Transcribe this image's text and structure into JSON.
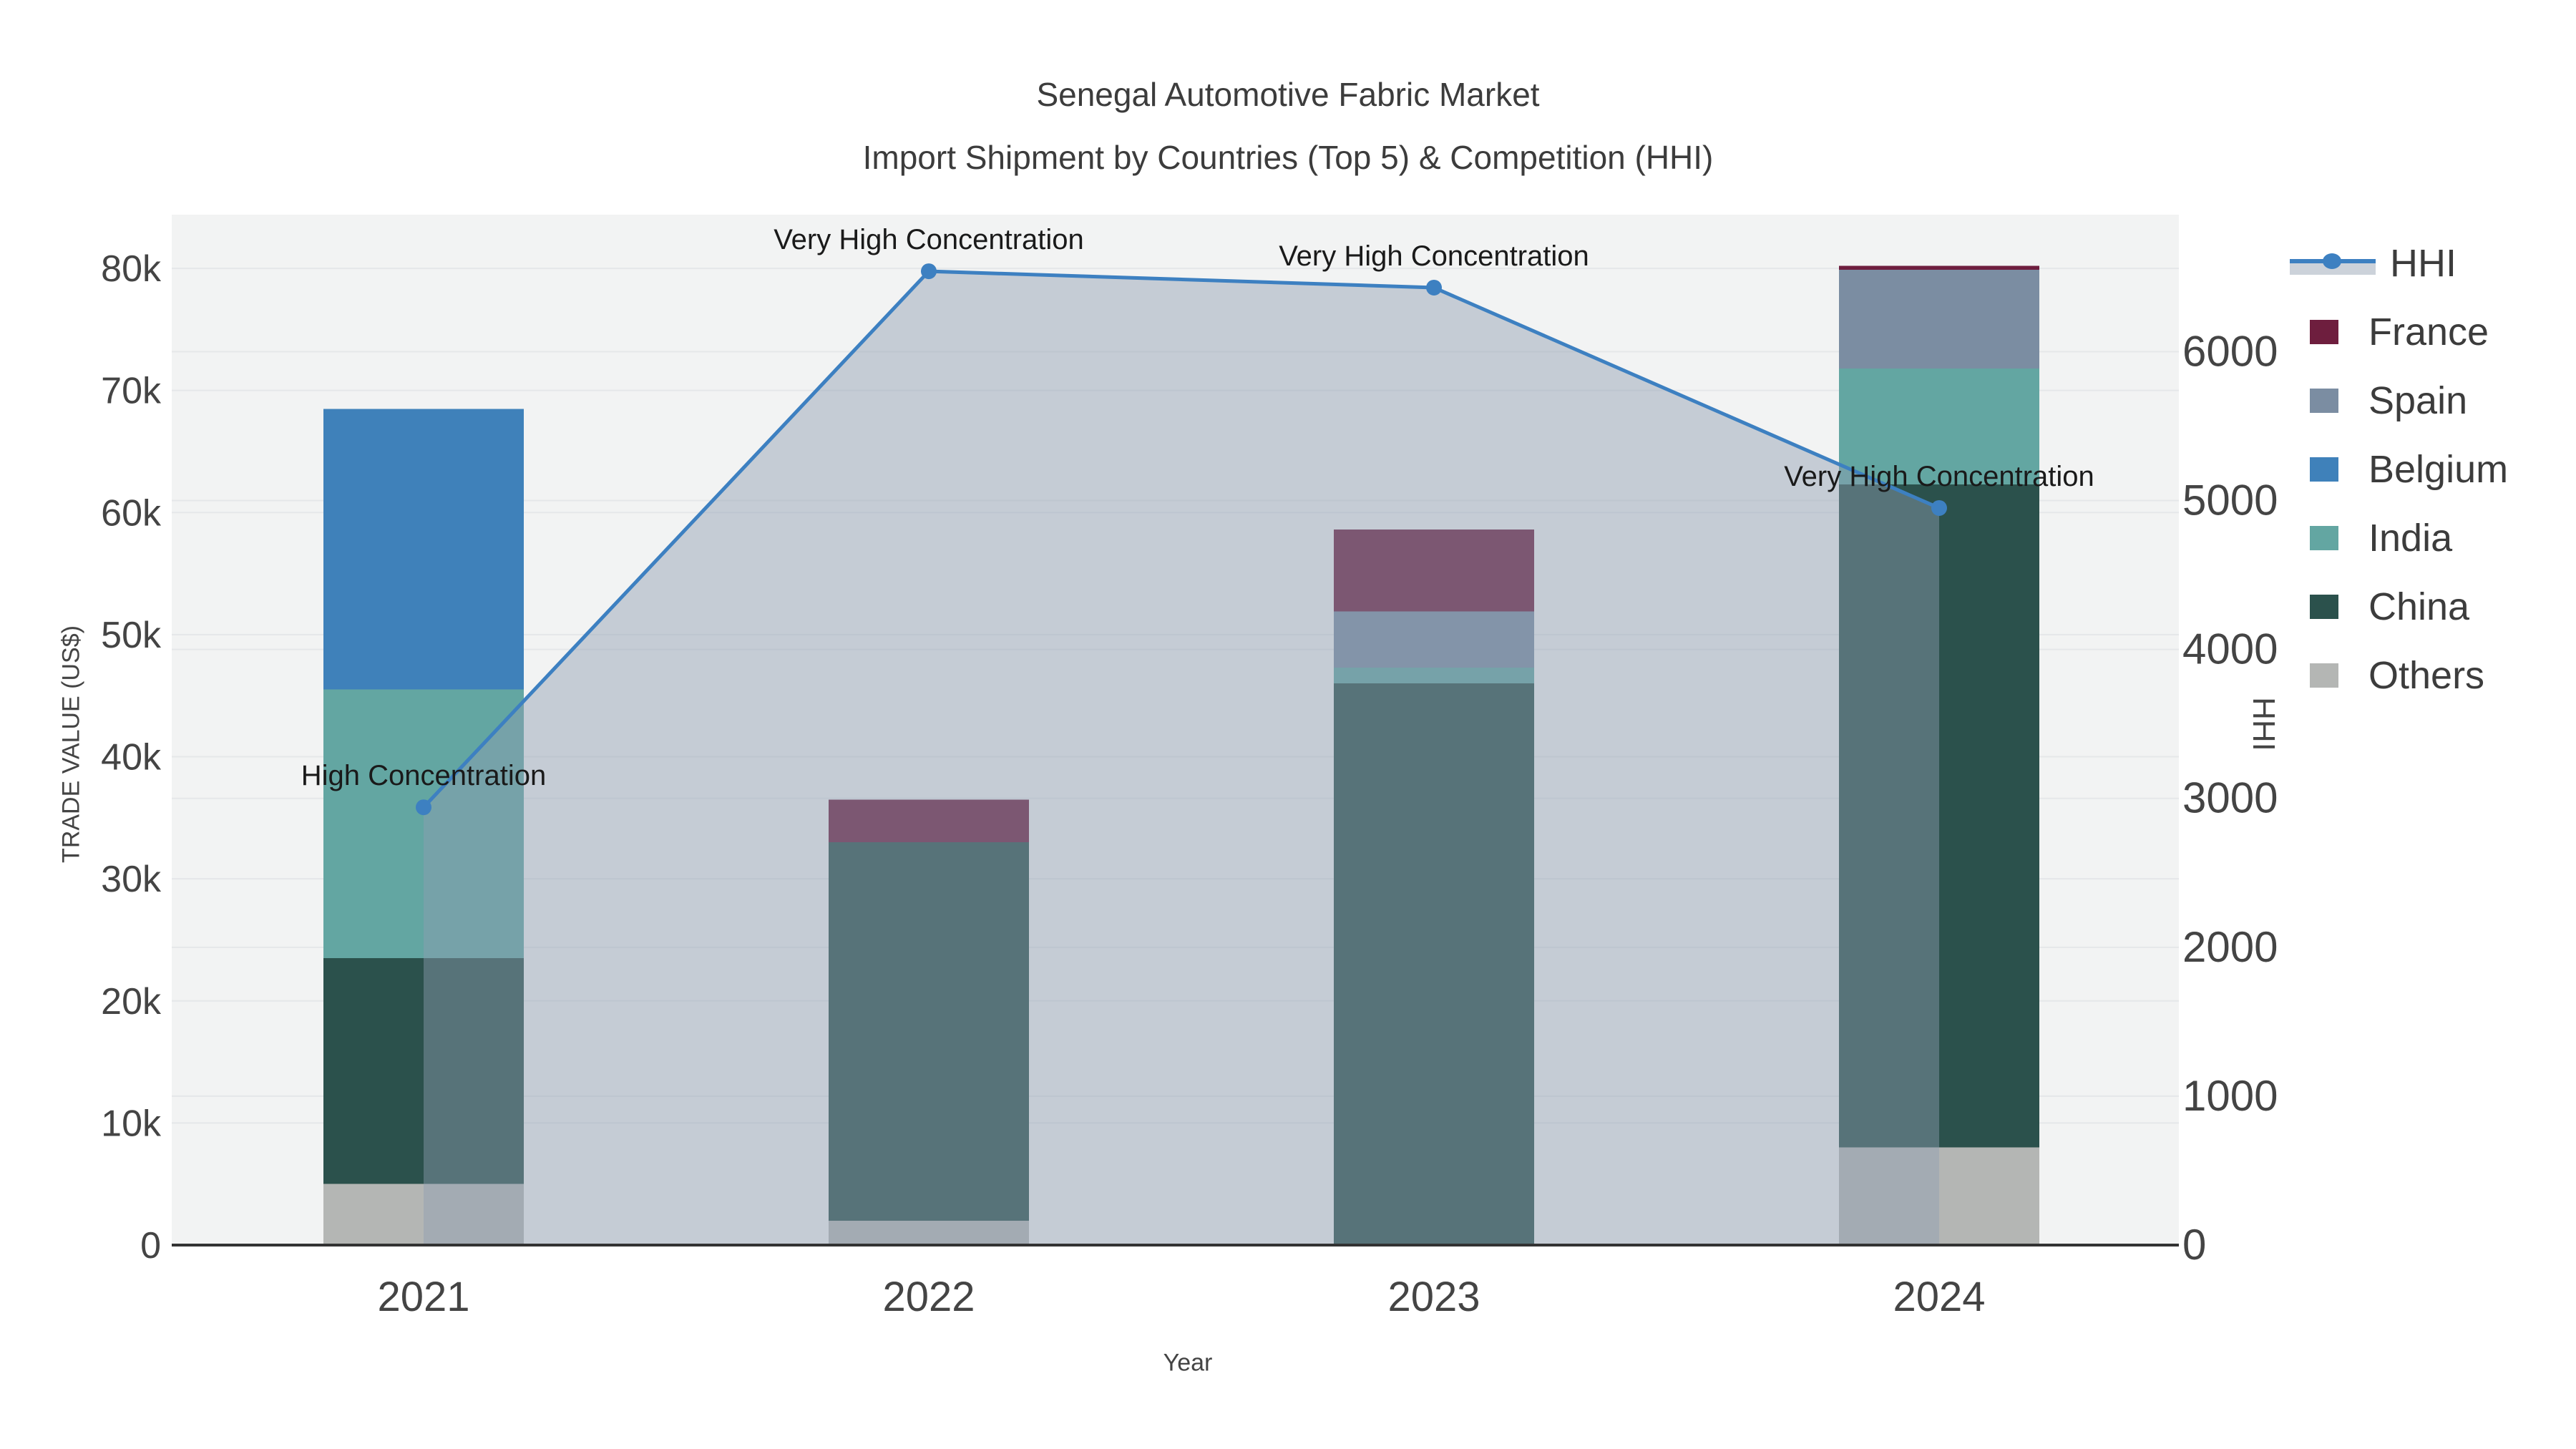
{
  "title": {
    "line1": "Senegal Automotive Fabric Market",
    "line2": "Import Shipment by Countries (Top 5) & Competition (HHI)"
  },
  "axes": {
    "x": {
      "title": "Year"
    },
    "y_left": {
      "title": "TRADE VALUE (US$)"
    },
    "y_right": {
      "title": "HHI"
    }
  },
  "legend": {
    "items": [
      {
        "label": "HHI",
        "type": "line",
        "color": "#3d80c1",
        "band_color": "#ccd2da"
      },
      {
        "label": "France",
        "type": "swatch",
        "color": "#6e1e3e"
      },
      {
        "label": "Spain",
        "type": "swatch",
        "color": "#7b8da2"
      },
      {
        "label": "Belgium",
        "type": "swatch",
        "color": "#3f81ba"
      },
      {
        "label": "India",
        "type": "swatch",
        "color": "#63a6a2"
      },
      {
        "label": "China",
        "type": "swatch",
        "color": "#2b514c"
      },
      {
        "label": "Others",
        "type": "swatch",
        "color": "#b4b6b4"
      }
    ]
  },
  "chart_data": {
    "type": "combo: stacked-bar + line",
    "title": "Senegal Automotive Fabric Market — Import Shipment by Countries (Top 5) & Competition (HHI)",
    "categories": [
      "2021",
      "2022",
      "2023",
      "2024"
    ],
    "bar_value_unit": "US$",
    "stack_order_bottom_to_top": [
      "Others",
      "China",
      "India",
      "Belgium",
      "Spain",
      "France"
    ],
    "series": [
      {
        "name": "Others",
        "color": "#b4b6b4",
        "values": [
          5000,
          2000,
          0,
          8000
        ]
      },
      {
        "name": "China",
        "color": "#2b514c",
        "values": [
          18500,
          31000,
          46000,
          54300
        ]
      },
      {
        "name": "India",
        "color": "#63a6a2",
        "values": [
          22000,
          0,
          1300,
          9500
        ]
      },
      {
        "name": "Belgium",
        "color": "#3f81ba",
        "values": [
          23000,
          0,
          0,
          0
        ]
      },
      {
        "name": "Spain",
        "color": "#7b8da2",
        "values": [
          0,
          0,
          4600,
          8100
        ]
      },
      {
        "name": "France",
        "color": "#6e1e3e",
        "values": [
          0,
          3500,
          6700,
          300
        ]
      }
    ],
    "bar_totals": [
      68500,
      36500,
      58600,
      80200
    ],
    "line_series": {
      "name": "HHI",
      "axis": "right",
      "color": "#3d80c1",
      "fill": "tozeroy",
      "fill_color": "rgba(143,157,178,0.45)",
      "values": [
        2940,
        6540,
        6430,
        4950
      ]
    },
    "annotations": [
      "High Concentration",
      "Very High Concentration",
      "Very High Concentration",
      "Very High Concentration"
    ],
    "y_left": {
      "label": "TRADE VALUE (US$)",
      "range": [
        0,
        84400
      ],
      "ticks": [
        {
          "label": "0",
          "value": 0
        },
        {
          "label": "10k",
          "value": 10000
        },
        {
          "label": "20k",
          "value": 20000
        },
        {
          "label": "30k",
          "value": 30000
        },
        {
          "label": "40k",
          "value": 40000
        },
        {
          "label": "50k",
          "value": 50000
        },
        {
          "label": "60k",
          "value": 60000
        },
        {
          "label": "70k",
          "value": 70000
        },
        {
          "label": "80k",
          "value": 80000
        }
      ]
    },
    "y_right": {
      "label": "HHI",
      "range": [
        0,
        6920
      ],
      "ticks": [
        {
          "label": "0",
          "value": 0
        },
        {
          "label": "1000",
          "value": 1000
        },
        {
          "label": "2000",
          "value": 2000
        },
        {
          "label": "3000",
          "value": 3000
        },
        {
          "label": "4000",
          "value": 4000
        },
        {
          "label": "5000",
          "value": 5000
        },
        {
          "label": "6000",
          "value": 6000
        }
      ]
    },
    "x": {
      "label": "Year"
    },
    "grid": true,
    "legend_position": "right",
    "plot_bg_color": "#f2f3f3",
    "grid_color": "#e5e7e9",
    "axis_line_color": "#333333",
    "tick_text_color": "#444444",
    "annotation_text_color": "#1a1a1a"
  }
}
